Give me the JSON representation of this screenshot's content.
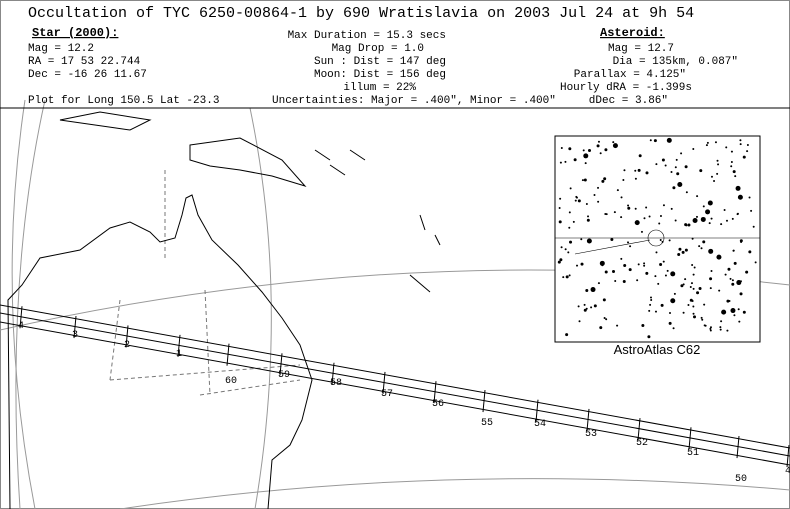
{
  "header": {
    "title": "Occultation of TYC 6250-00864-1 by 690 Wratislavia on  2003 Jul 24 at  9h 54",
    "star": {
      "heading": "Star (2000):",
      "lines": [
        "Mag = 12.2",
        "RA =  17 53 22.744",
        "Dec = -16 26 11.67"
      ]
    },
    "event": {
      "lines": [
        "Max Duration = 15.3 secs",
        "Mag Drop =  1.0",
        "Sun :   Dist = 147 deg",
        "Moon:   Dist = 156 deg",
        "illum = 22%"
      ]
    },
    "asteroid": {
      "heading": "Asteroid:",
      "lines": [
        "Mag = 12.7",
        "Dia = 135km, 0.087\"",
        "Parallax = 4.125\"",
        "Hourly dRA = -1.399s",
        "dDec = 3.86\""
      ]
    },
    "plot": "Plot for Long 150.5  Lat -23.3",
    "uncertainties": "Uncertainties: Major = .400\", Minor = .400\""
  },
  "map": {
    "time_labels": [
      "4",
      "3",
      "2",
      "1",
      "60",
      "59",
      "58",
      "57",
      "56",
      "55",
      "54",
      "53",
      "52",
      "51",
      "50",
      "4"
    ],
    "inset_caption": "AstroAtlas C62"
  }
}
